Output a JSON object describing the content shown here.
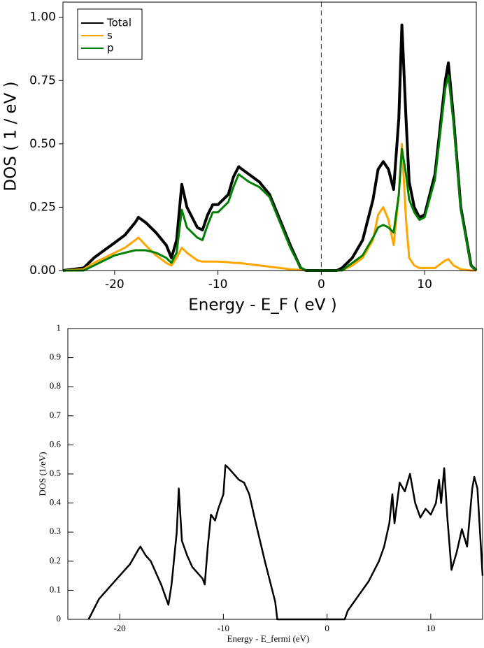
{
  "chart_data": [
    {
      "type": "line",
      "xlabel": "Energy - E_F ( eV )",
      "ylabel": "DOS  ( 1 / eV )",
      "xlim": [
        -25,
        15
      ],
      "ylim": [
        0,
        1.06
      ],
      "xticks": [
        -20,
        -10,
        0,
        10
      ],
      "yticks": [
        {
          "value": 0,
          "label": "0.00"
        },
        {
          "value": 0.25,
          "label": "0.25"
        },
        {
          "value": 0.5,
          "label": "0.50"
        },
        {
          "value": 0.75,
          "label": "0.75"
        },
        {
          "value": 1,
          "label": "1.00"
        }
      ],
      "vline": 0,
      "legend": "upper left",
      "x": [
        -25,
        -23,
        -22,
        -21,
        -20,
        -19,
        -18,
        -17.7,
        -17,
        -16,
        -15,
        -14.5,
        -14,
        -13.5,
        -13,
        -12,
        -11.5,
        -11,
        -10.5,
        -10,
        -9,
        -8.5,
        -8,
        -7,
        -6,
        -5,
        -4,
        -3,
        -2,
        -1.5,
        0,
        1.5,
        2,
        3,
        4,
        5,
        5.5,
        6,
        6.5,
        7,
        7.5,
        7.8,
        8.2,
        8.5,
        9,
        9.5,
        10,
        11,
        12,
        12.3,
        12.8,
        13.5,
        14.5,
        15
      ],
      "series": [
        {
          "name": "Total",
          "color": "#000000",
          "values": [
            0,
            0.01,
            0.05,
            0.08,
            0.11,
            0.14,
            0.19,
            0.21,
            0.19,
            0.15,
            0.1,
            0.05,
            0.12,
            0.34,
            0.25,
            0.17,
            0.16,
            0.22,
            0.26,
            0.26,
            0.3,
            0.37,
            0.41,
            0.38,
            0.35,
            0.3,
            0.2,
            0.1,
            0.01,
            0,
            0,
            0,
            0.01,
            0.05,
            0.12,
            0.28,
            0.4,
            0.43,
            0.4,
            0.32,
            0.6,
            0.97,
            0.6,
            0.35,
            0.25,
            0.21,
            0.22,
            0.38,
            0.75,
            0.82,
            0.6,
            0.25,
            0.02,
            0
          ]
        },
        {
          "name": "s",
          "color": "#ffa500",
          "values": [
            0,
            0.005,
            0.03,
            0.05,
            0.07,
            0.09,
            0.12,
            0.13,
            0.1,
            0.06,
            0.03,
            0.02,
            0.05,
            0.09,
            0.07,
            0.04,
            0.035,
            0.035,
            0.035,
            0.035,
            0.033,
            0.03,
            0.03,
            0.025,
            0.02,
            0.015,
            0.01,
            0.005,
            0.002,
            0,
            0,
            0,
            0,
            0.02,
            0.05,
            0.12,
            0.22,
            0.25,
            0.2,
            0.1,
            0.3,
            0.5,
            0.2,
            0.05,
            0.02,
            0.01,
            0.01,
            0.01,
            0.04,
            0.045,
            0.02,
            0.005,
            0,
            0
          ]
        },
        {
          "name": "p",
          "color": "#008000",
          "values": [
            0,
            0,
            0.02,
            0.04,
            0.06,
            0.07,
            0.08,
            0.08,
            0.08,
            0.07,
            0.05,
            0.03,
            0.07,
            0.24,
            0.17,
            0.13,
            0.12,
            0.18,
            0.23,
            0.23,
            0.27,
            0.33,
            0.38,
            0.35,
            0.33,
            0.29,
            0.19,
            0.09,
            0.01,
            0,
            0,
            0,
            0,
            0.03,
            0.06,
            0.13,
            0.17,
            0.18,
            0.17,
            0.15,
            0.3,
            0.48,
            0.38,
            0.28,
            0.23,
            0.2,
            0.21,
            0.36,
            0.72,
            0.77,
            0.58,
            0.24,
            0.02,
            0
          ]
        }
      ]
    },
    {
      "type": "line",
      "xlabel": "Energy - E_fermi (eV)",
      "ylabel": "DOS (1/eV)",
      "xlim": [
        -25,
        15
      ],
      "ylim": [
        0,
        1
      ],
      "xticks": [
        -20,
        -10,
        0,
        10
      ],
      "yticks": [
        0,
        0.1,
        0.2,
        0.3,
        0.4,
        0.5,
        0.6,
        0.7,
        0.8,
        0.9,
        1
      ],
      "color": "#000000",
      "x": [
        -23,
        -22,
        -21,
        -20,
        -19,
        -18.2,
        -18,
        -17.5,
        -17,
        -16,
        -15.5,
        -15.3,
        -15,
        -14.5,
        -14.3,
        -14,
        -13.5,
        -13,
        -12,
        -11.8,
        -11.5,
        -11.2,
        -10.8,
        -10.5,
        -10,
        -9.8,
        -9.5,
        -9,
        -8.5,
        -8,
        -7.5,
        -7,
        -6,
        -5,
        -4.8,
        0,
        1.7,
        2,
        3,
        4,
        5,
        5.5,
        6,
        6.3,
        6.5,
        7,
        7.5,
        8,
        8.5,
        9,
        9.5,
        10,
        10.5,
        10.8,
        11,
        11.3,
        11.6,
        12,
        12.5,
        13,
        13.5,
        14,
        14.2,
        14.5,
        15
      ],
      "values": [
        0,
        0.07,
        0.11,
        0.15,
        0.19,
        0.24,
        0.25,
        0.22,
        0.2,
        0.12,
        0.07,
        0.05,
        0.12,
        0.3,
        0.45,
        0.27,
        0.22,
        0.18,
        0.14,
        0.12,
        0.25,
        0.36,
        0.34,
        0.38,
        0.43,
        0.53,
        0.52,
        0.5,
        0.48,
        0.47,
        0.43,
        0.35,
        0.2,
        0.06,
        0,
        0,
        0,
        0.03,
        0.08,
        0.13,
        0.2,
        0.25,
        0.33,
        0.43,
        0.33,
        0.47,
        0.44,
        0.5,
        0.4,
        0.35,
        0.38,
        0.36,
        0.4,
        0.48,
        0.4,
        0.52,
        0.35,
        0.17,
        0.23,
        0.31,
        0.25,
        0.45,
        0.49,
        0.45,
        0.15
      ]
    }
  ]
}
